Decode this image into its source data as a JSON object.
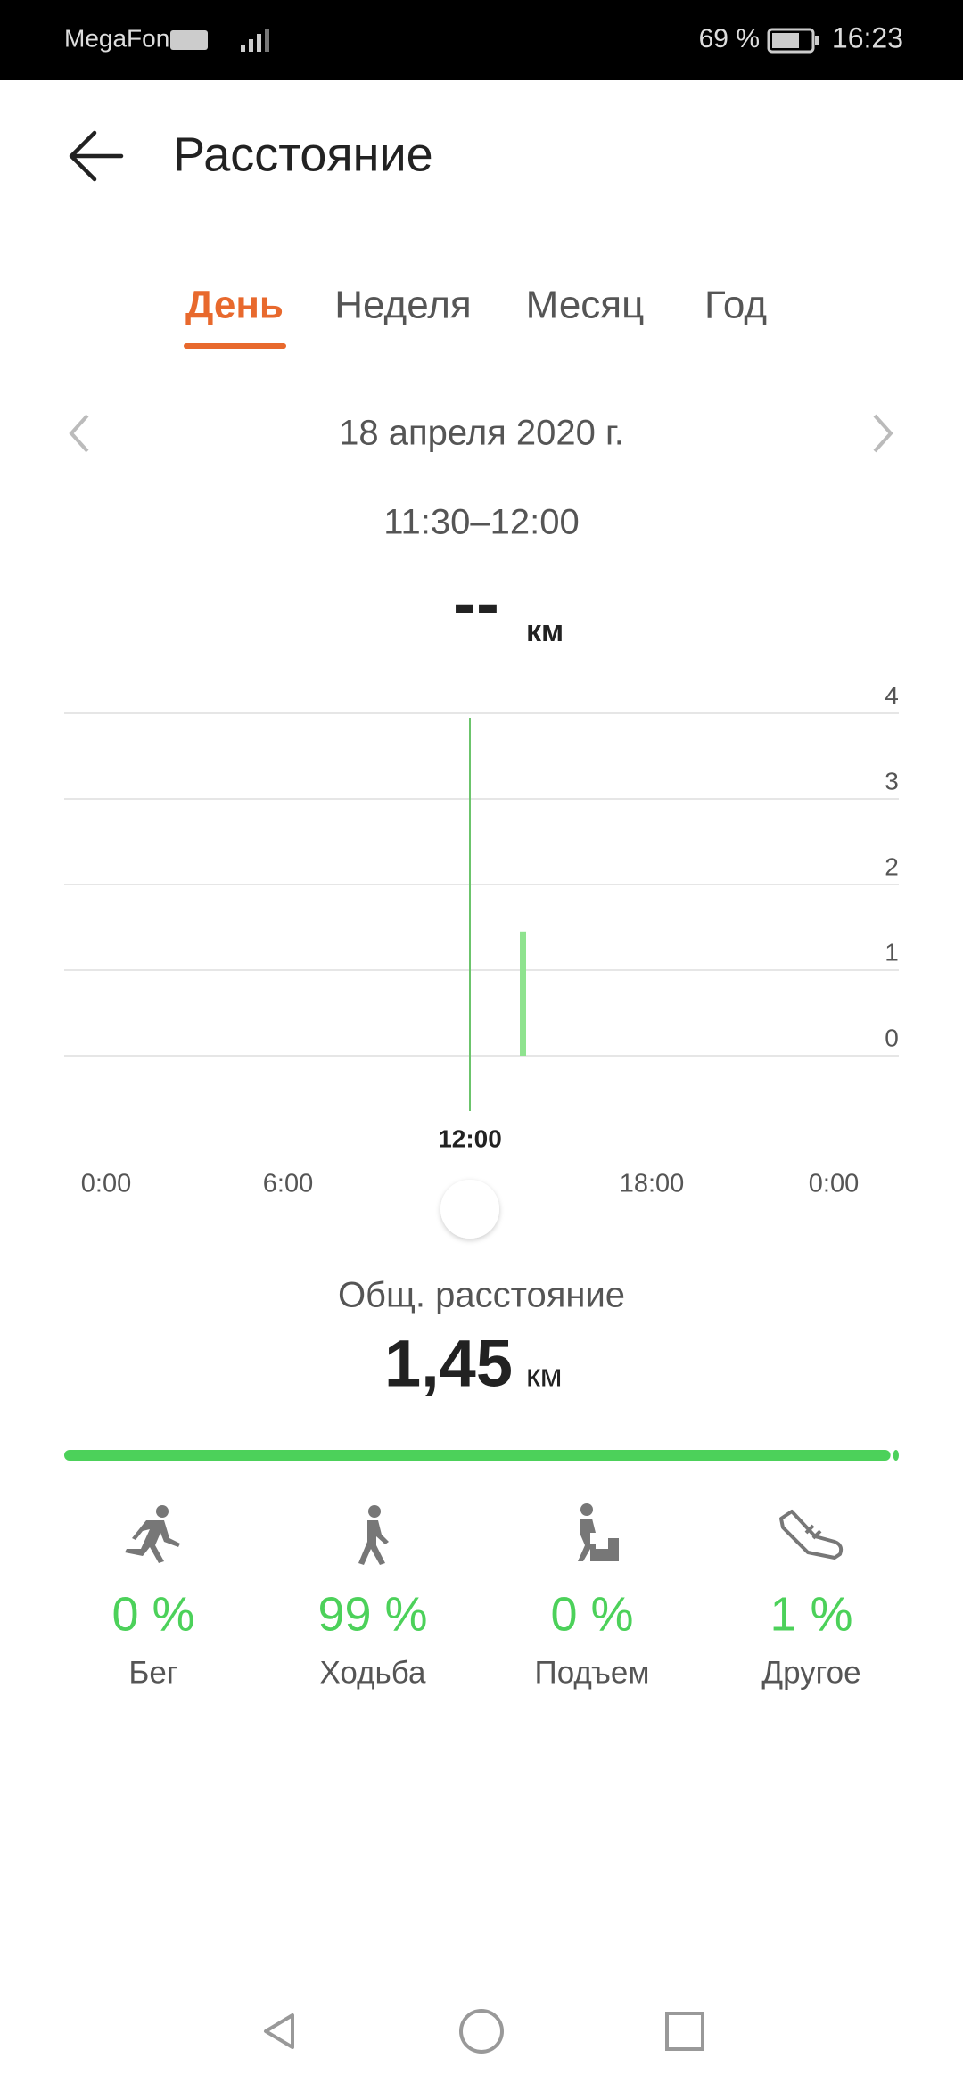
{
  "status_bar": {
    "carrier": "MegaFon",
    "battery": "69 %",
    "time": "16:23"
  },
  "header": {
    "title": "Расстояние"
  },
  "tabs": [
    "День",
    "Неделя",
    "Месяц",
    "Год"
  ],
  "date": "18 апреля 2020 г.",
  "time_range": "11:30–12:00",
  "chart_data": {
    "type": "bar",
    "selected_value": "--",
    "unit": "км",
    "x": [
      13.75
    ],
    "values": [
      1.45
    ],
    "color": "#8fe38f",
    "xlim": [
      0,
      24
    ],
    "xticks": [
      {
        "value": 0,
        "label": "0:00"
      },
      {
        "value": 6,
        "label": "6:00"
      },
      {
        "value": 18,
        "label": "18:00"
      },
      {
        "value": 24,
        "label": "0:00"
      }
    ],
    "cursor": {
      "value": 12,
      "label": "12:00"
    },
    "ylim": [
      0,
      4
    ],
    "yticks": [
      0,
      1,
      2,
      3,
      4
    ],
    "grid": true
  },
  "summary": {
    "label": "Общ. расстояние",
    "value": "1,45",
    "unit": "км"
  },
  "breakdown": [
    {
      "label": "Бег",
      "percent": 0,
      "percent_label": "0 %"
    },
    {
      "label": "Ходьба",
      "percent": 99,
      "percent_label": "99 %"
    },
    {
      "label": "Подъем",
      "percent": 0,
      "percent_label": "0 %"
    },
    {
      "label": "Другое",
      "percent": 1,
      "percent_label": "1 %"
    }
  ]
}
